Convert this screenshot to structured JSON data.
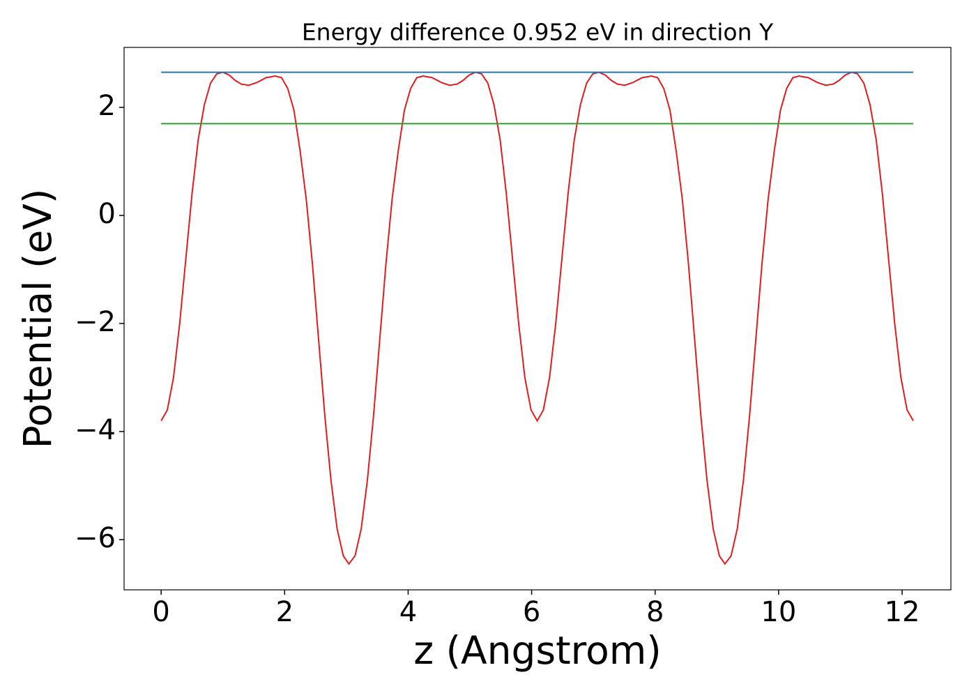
{
  "chart_data": {
    "type": "line",
    "title": "Energy difference 0.952 eV in direction Y",
    "x_label": "z (Angstrom)",
    "y_label": "Potential (eV)",
    "xlim": [
      -0.6,
      12.79
    ],
    "ylim": [
      -6.93,
      3.11
    ],
    "xticks": [
      0,
      2,
      4,
      6,
      8,
      10,
      12
    ],
    "yticks": [
      {
        "value": -6,
        "label": "−6"
      },
      {
        "value": -4,
        "label": "−4"
      },
      {
        "value": -2,
        "label": "−2"
      },
      0,
      2
    ],
    "series": [
      {
        "color": "#e41a1c",
        "x": [
          0,
          0.1,
          0.2,
          0.3,
          0.4,
          0.5,
          0.6,
          0.7,
          0.8,
          0.9,
          1.0,
          1.1,
          1.2,
          1.3,
          1.42,
          1.55,
          1.7,
          1.85,
          1.95,
          2.05,
          2.15,
          2.25,
          2.35,
          2.45,
          2.55,
          2.65,
          2.75,
          2.85,
          2.95,
          3.04,
          3.14,
          3.24,
          3.34,
          3.44,
          3.54,
          3.64,
          3.74,
          3.84,
          3.94,
          4.04,
          4.14,
          4.24,
          4.39,
          4.54,
          4.67,
          4.79,
          4.89,
          4.99,
          5.09,
          5.19,
          5.29,
          5.39,
          5.49,
          5.59,
          5.69,
          5.79,
          5.89,
          5.99,
          6.09,
          6.19,
          6.29,
          6.39,
          6.49,
          6.59,
          6.69,
          6.79,
          6.89,
          6.99,
          7.09,
          7.19,
          7.29,
          7.39,
          7.51,
          7.64,
          7.79,
          7.94,
          8.04,
          8.14,
          8.24,
          8.34,
          8.44,
          8.54,
          8.64,
          8.74,
          8.84,
          8.94,
          9.04,
          9.13,
          9.23,
          9.33,
          9.43,
          9.53,
          9.63,
          9.73,
          9.83,
          9.93,
          10.03,
          10.13,
          10.23,
          10.33,
          10.48,
          10.63,
          10.76,
          10.88,
          10.98,
          11.08,
          11.18,
          11.28,
          11.38,
          11.48,
          11.58,
          11.68,
          11.78,
          11.88,
          11.98,
          12.08,
          12.18
        ],
        "values": [
          -3.8,
          -3.6,
          -3.0,
          -2.0,
          -0.8,
          0.4,
          1.4,
          2.05,
          2.45,
          2.62,
          2.65,
          2.6,
          2.5,
          2.43,
          2.41,
          2.46,
          2.55,
          2.58,
          2.55,
          2.35,
          1.95,
          1.2,
          0.3,
          -0.9,
          -2.3,
          -3.7,
          -4.9,
          -5.8,
          -6.3,
          -6.45,
          -6.3,
          -5.8,
          -4.9,
          -3.7,
          -2.3,
          -0.9,
          0.3,
          1.2,
          1.95,
          2.35,
          2.55,
          2.58,
          2.55,
          2.46,
          2.41,
          2.43,
          2.5,
          2.6,
          2.65,
          2.62,
          2.45,
          2.05,
          1.4,
          0.4,
          -0.8,
          -2.0,
          -3.0,
          -3.6,
          -3.8,
          -3.6,
          -3.0,
          -2.0,
          -0.8,
          0.4,
          1.4,
          2.05,
          2.45,
          2.62,
          2.65,
          2.6,
          2.5,
          2.43,
          2.41,
          2.46,
          2.55,
          2.58,
          2.55,
          2.35,
          1.95,
          1.2,
          0.3,
          -0.9,
          -2.3,
          -3.7,
          -4.9,
          -5.8,
          -6.3,
          -6.45,
          -6.3,
          -5.8,
          -4.9,
          -3.7,
          -2.3,
          -0.9,
          0.3,
          1.2,
          1.95,
          2.35,
          2.55,
          2.58,
          2.55,
          2.46,
          2.41,
          2.43,
          2.5,
          2.6,
          2.65,
          2.62,
          2.45,
          2.05,
          1.4,
          0.4,
          -0.8,
          -2.0,
          -3.0,
          -3.6,
          -3.8
        ]
      },
      {
        "color": "#1f77b4",
        "x": [
          0,
          12.18
        ],
        "values": [
          2.65,
          2.65
        ]
      },
      {
        "color": "#2ca02c",
        "x": [
          0,
          12.18
        ],
        "values": [
          1.698,
          1.698
        ]
      }
    ]
  }
}
